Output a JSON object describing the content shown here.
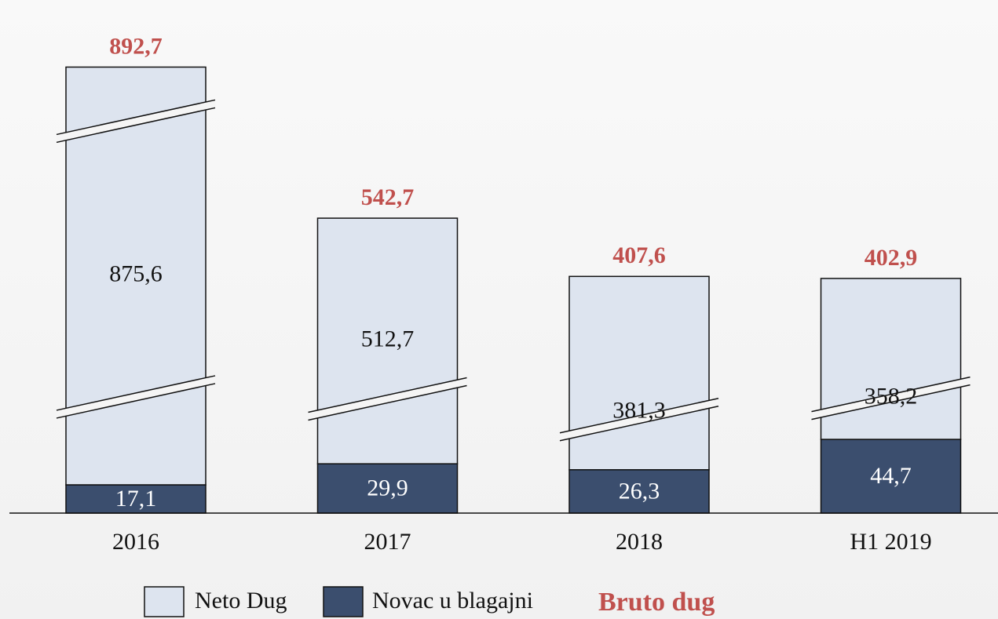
{
  "chart_data": {
    "type": "stacked-bar",
    "categories": [
      "2016",
      "2017",
      "2018",
      "H1 2019"
    ],
    "series": [
      {
        "name": "Novac u blagajni",
        "color": "#3b4e6e",
        "values": [
          17.1,
          29.9,
          26.3,
          44.7
        ],
        "value_labels": [
          "17,1",
          "29,9",
          "26,3",
          "44,7"
        ]
      },
      {
        "name": "Neto Dug",
        "color": "#dde4ef",
        "values": [
          875.6,
          512.7,
          381.3,
          358.2
        ],
        "value_labels": [
          "875,6",
          "512,7",
          "381,3",
          "358,2"
        ]
      }
    ],
    "totals": {
      "name": "Bruto dug",
      "color": "#c0504d",
      "values": [
        892.7,
        542.7,
        407.6,
        402.9
      ],
      "value_labels": [
        "892,7",
        "542,7",
        "407,6",
        "402,9"
      ]
    },
    "axis_break": true
  }
}
